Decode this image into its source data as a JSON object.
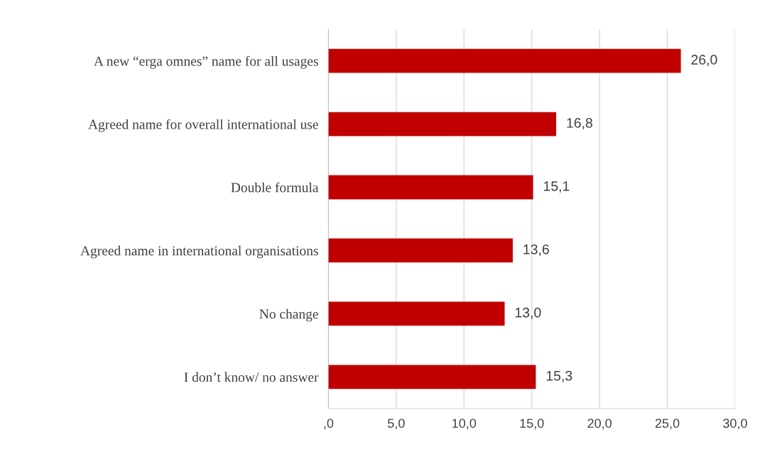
{
  "chart_data": {
    "type": "bar",
    "orientation": "horizontal",
    "categories": [
      "A new “erga omnes” name for all usages",
      "Agreed name for overall international use",
      "Double formula",
      "Agreed name in international organisations",
      "No change",
      "I don’t know/ no answer"
    ],
    "values": [
      26.0,
      16.8,
      15.1,
      13.6,
      13.0,
      15.3
    ],
    "value_labels": [
      "26,0",
      "16,8",
      "15,1",
      "13,6",
      "13,0",
      "15,3"
    ],
    "color": "#c00000",
    "xlim": [
      0,
      30
    ],
    "xticks": [
      {
        "value": 0,
        "label": ",0"
      },
      {
        "value": 5,
        "label": "5,0"
      },
      {
        "value": 10,
        "label": "10,0"
      },
      {
        "value": 15,
        "label": "15,0"
      },
      {
        "value": 20,
        "label": "20,0"
      },
      {
        "value": 25,
        "label": "25,0"
      },
      {
        "value": 30,
        "label": "30,0"
      }
    ],
    "grid": "x",
    "legend": false
  }
}
